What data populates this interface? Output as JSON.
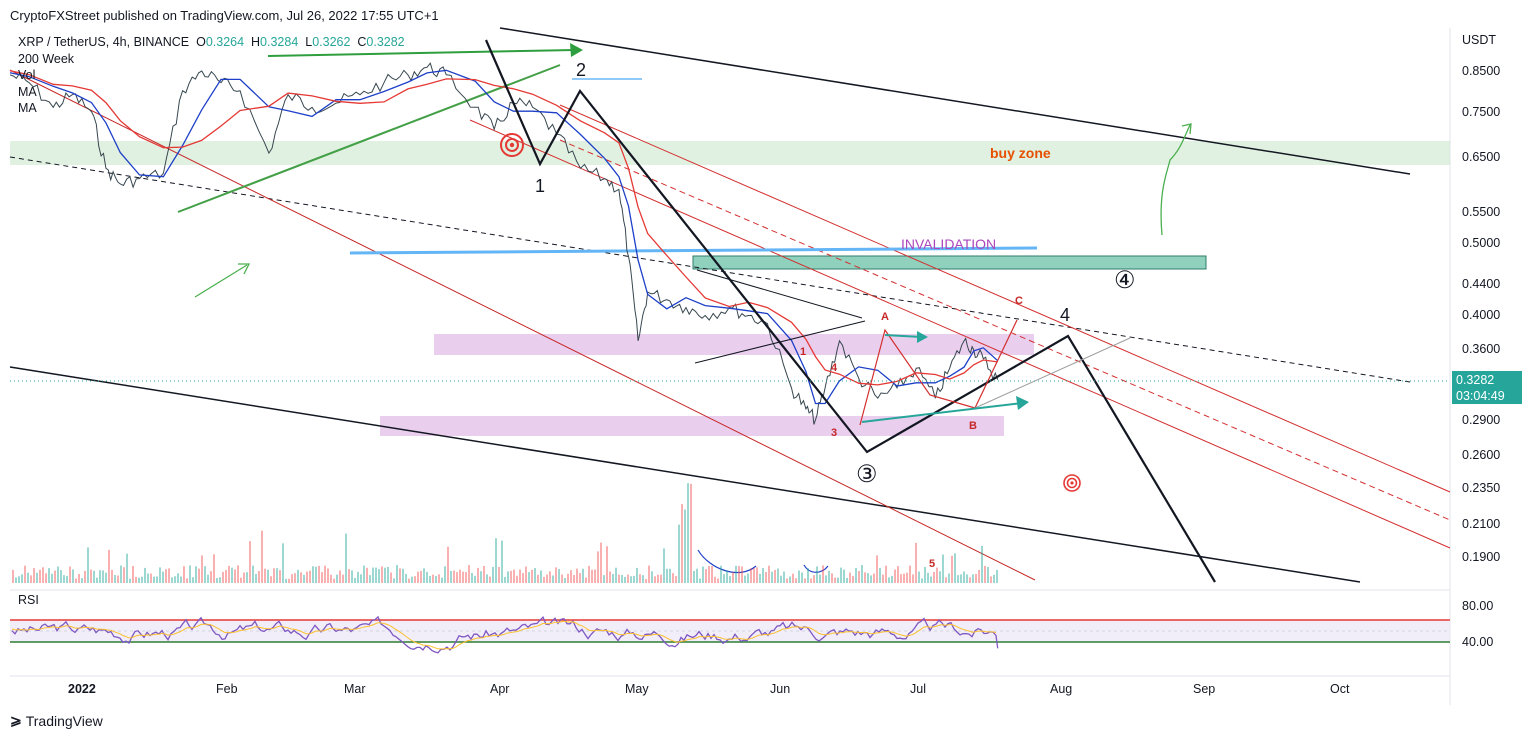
{
  "publisher": "CryptoFXStreet published on TradingView.com, Jul 26, 2022 17:55 UTC+1",
  "legend": {
    "symbol": "XRP / TetherUS, 4h, BINANCE",
    "o_label": "O",
    "o": "0.3264",
    "h_label": "H",
    "h": "0.3284",
    "l_label": "L",
    "l": "0.3262",
    "c_label": "C",
    "c": "0.3282",
    "rows": [
      "200 Week",
      "Vol",
      "MA",
      "MA"
    ]
  },
  "y_axis": {
    "unit": "USDT",
    "ticks": [
      "0.8500",
      "0.7500",
      "0.6500",
      "0.5500",
      "0.5000",
      "0.4400",
      "0.4000",
      "0.3600",
      "0.2900",
      "0.2600",
      "0.2350",
      "0.2100",
      "0.1900"
    ]
  },
  "price_tag": {
    "price": "0.3282",
    "countdown": "03:04:49"
  },
  "rsi": {
    "label": "RSI",
    "ticks": [
      "80.00",
      "40.00"
    ]
  },
  "x_axis": {
    "ticks": [
      "2022",
      "Feb",
      "Mar",
      "Apr",
      "May",
      "Jun",
      "Jul",
      "Aug",
      "Sep",
      "Oct"
    ]
  },
  "annotations": {
    "buy_zone": "buy zone",
    "invalidation": "INVALIDATION",
    "w1": "1",
    "w2": "2",
    "w3": "③",
    "w4_major": "④",
    "w4": "4",
    "sub1": "1",
    "sub3": "3",
    "sub4": "4",
    "sub5": "5",
    "a": "A",
    "b": "B",
    "c": "C"
  },
  "footer": {
    "brand": "TradingView"
  },
  "colors": {
    "up": "#26a69a",
    "down": "#ef5350",
    "accent_green": "#2e9e3e",
    "accent_red": "#d32f2f"
  },
  "chart_data": {
    "type": "line",
    "title": "XRP / TetherUS, 4h, BINANCE",
    "y_scale": "log",
    "ylim": [
      0.17,
      1.0
    ],
    "x_range": [
      "2022-01-01",
      "2022-10-20"
    ],
    "series": [
      {
        "name": "XRP / TetherUS",
        "points": [
          [
            "2022-01-01",
            0.84
          ],
          [
            "2022-01-05",
            0.82
          ],
          [
            "2022-01-10",
            0.76
          ],
          [
            "2022-01-14",
            0.79
          ],
          [
            "2022-01-18",
            0.75
          ],
          [
            "2022-01-21",
            0.63
          ],
          [
            "2022-01-24",
            0.6
          ],
          [
            "2022-01-28",
            0.61
          ],
          [
            "2022-02-02",
            0.62
          ],
          [
            "2022-02-06",
            0.8
          ],
          [
            "2022-02-10",
            0.85
          ],
          [
            "2022-02-14",
            0.82
          ],
          [
            "2022-02-18",
            0.8
          ],
          [
            "2022-02-24",
            0.66
          ],
          [
            "2022-02-28",
            0.79
          ],
          [
            "2022-03-05",
            0.76
          ],
          [
            "2022-03-10",
            0.77
          ],
          [
            "2022-03-15",
            0.79
          ],
          [
            "2022-03-20",
            0.82
          ],
          [
            "2022-03-25",
            0.84
          ],
          [
            "2022-03-29",
            0.86
          ],
          [
            "2022-04-02",
            0.84
          ],
          [
            "2022-04-08",
            0.76
          ],
          [
            "2022-04-12",
            0.71
          ],
          [
            "2022-04-16",
            0.77
          ],
          [
            "2022-04-20",
            0.76
          ],
          [
            "2022-04-25",
            0.7
          ],
          [
            "2022-04-30",
            0.63
          ],
          [
            "2022-05-05",
            0.61
          ],
          [
            "2022-05-08",
            0.59
          ],
          [
            "2022-05-10",
            0.48
          ],
          [
            "2022-05-12",
            0.37
          ],
          [
            "2022-05-14",
            0.43
          ],
          [
            "2022-05-18",
            0.42
          ],
          [
            "2022-05-22",
            0.41
          ],
          [
            "2022-05-26",
            0.4
          ],
          [
            "2022-05-31",
            0.41
          ],
          [
            "2022-06-04",
            0.4
          ],
          [
            "2022-06-08",
            0.39
          ],
          [
            "2022-06-13",
            0.32
          ],
          [
            "2022-06-16",
            0.3
          ],
          [
            "2022-06-18",
            0.29
          ],
          [
            "2022-06-20",
            0.32
          ],
          [
            "2022-06-23",
            0.37
          ],
          [
            "2022-06-27",
            0.33
          ],
          [
            "2022-07-01",
            0.31
          ],
          [
            "2022-07-05",
            0.32
          ],
          [
            "2022-07-09",
            0.34
          ],
          [
            "2022-07-13",
            0.31
          ],
          [
            "2022-07-16",
            0.34
          ],
          [
            "2022-07-19",
            0.37
          ],
          [
            "2022-07-21",
            0.36
          ],
          [
            "2022-07-23",
            0.35
          ],
          [
            "2022-07-26",
            0.3282
          ]
        ]
      }
    ],
    "zones": [
      {
        "name": "buy zone",
        "from": 0.635,
        "to": 0.69
      },
      {
        "name": "INVALIDATION",
        "from": 0.455,
        "to": 0.475
      }
    ],
    "rsi": {
      "ylim": [
        20,
        90
      ],
      "levels": [
        70,
        40
      ],
      "last": 33
    }
  }
}
